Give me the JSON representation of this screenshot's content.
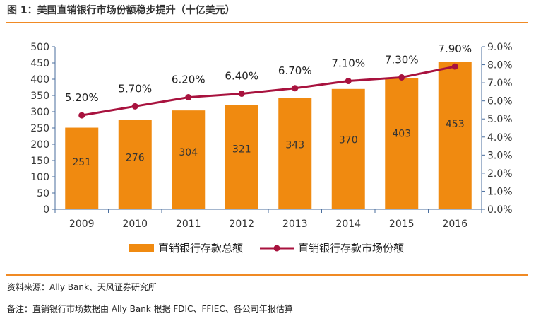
{
  "header": {
    "title": "图 1：美国直销银行市场份额稳步提升（十亿美元）"
  },
  "footer": {
    "source": "资料来源：Ally Bank、天风证券研究所",
    "note": "备注：直销银行市场数据由 Ally Bank 根据 FDIC、FFIEC、各公司年报估算"
  },
  "colors": {
    "bar": "#F08A10",
    "line": "#A8123E",
    "rule": "#F08A24",
    "axis": "#4A6E9E"
  },
  "chart_data": {
    "type": "bar",
    "title": "美国直销银行市场份额稳步提升（十亿美元）",
    "categories": [
      "2009",
      "2010",
      "2011",
      "2012",
      "2013",
      "2014",
      "2015",
      "2016"
    ],
    "ylim": [
      0,
      500
    ],
    "y_ticks": [
      "0",
      "50",
      "100",
      "150",
      "200",
      "250",
      "300",
      "350",
      "400",
      "450",
      "500"
    ],
    "y2lim": [
      0,
      9
    ],
    "y2_ticks": [
      "0.0%",
      "1.0%",
      "2.0%",
      "3.0%",
      "4.0%",
      "5.0%",
      "6.0%",
      "7.0%",
      "8.0%",
      "9.0%"
    ],
    "legend_position": "bottom",
    "series": [
      {
        "name": "直销银行存款总额",
        "type": "bar",
        "axis": "left",
        "values": [
          251,
          276,
          304,
          321,
          343,
          370,
          403,
          453
        ],
        "labels": [
          "251",
          "276",
          "304",
          "321",
          "343",
          "370",
          "403",
          "453"
        ]
      },
      {
        "name": "直销银行存款市场份额",
        "type": "line",
        "axis": "right",
        "values": [
          5.2,
          5.7,
          6.2,
          6.4,
          6.7,
          7.1,
          7.3,
          7.9
        ],
        "labels": [
          "5.20%",
          "5.70%",
          "6.20%",
          "6.40%",
          "6.70%",
          "7.10%",
          "7.30%",
          "7.90%"
        ]
      }
    ]
  }
}
